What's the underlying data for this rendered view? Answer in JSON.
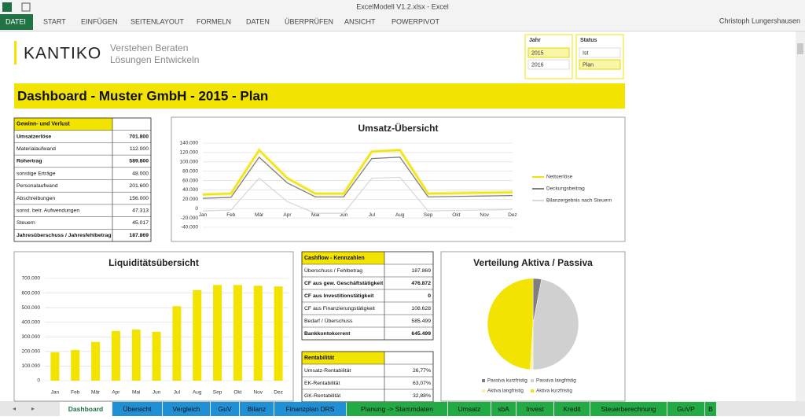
{
  "window": {
    "title": "ExcelModell V1.2.xlsx - Excel",
    "user": "Christoph Lungershausen"
  },
  "ribbon_tabs": [
    "DATEI",
    "START",
    "EINFÜGEN",
    "SEITENLAYOUT",
    "FORMELN",
    "DATEN",
    "ÜBERPRÜFEN",
    "ANSICHT",
    "POWERPIVOT"
  ],
  "logo": {
    "name": "KANTIKO",
    "tagline": [
      "Verstehen Beraten",
      "Lösungen Entwickeln"
    ]
  },
  "slicers": [
    {
      "title": "Jahr",
      "items": [
        "2015",
        "2016"
      ]
    },
    {
      "title": "Status",
      "items": [
        "Ist",
        "Plan"
      ]
    }
  ],
  "dashboard_title": "Dashboard - Muster GmbH - 2015 - Plan",
  "guv": {
    "header": "Gewinn- und Verlust",
    "rows": [
      [
        "Umsatzerlöse",
        "701.800"
      ],
      [
        "Materialaufwand",
        "112.000"
      ],
      [
        "Rohertrag",
        "589.800"
      ],
      [
        "sonstige Erträge",
        "48.000"
      ],
      [
        "Personalaufwand",
        "201.600"
      ],
      [
        "Abschreibungen",
        "156.000"
      ],
      [
        "sonst. betr. Aufwendungen",
        "47.313"
      ],
      [
        "Steuern",
        "45.017"
      ],
      [
        "Jahresüberschuss / Jahresfehlbetrag",
        "187.869"
      ]
    ]
  },
  "cashflow": {
    "header": "Cashflow - Kennzahlen",
    "rows": [
      [
        "Überschuss / Fehlbetrag",
        "187.869"
      ],
      [
        "CF aus gew. Geschäftstätigkeit",
        "476.872"
      ],
      [
        "CF aus Investitionstätigkeit",
        "0"
      ],
      [
        "CF aus Finanzierungstätigkeit",
        "108.628"
      ],
      [
        "Bedarf / Überschuss",
        "585.499"
      ],
      [
        "Bankkontokorrent",
        "645.499"
      ]
    ]
  },
  "rentabilitaet": {
    "header": "Rentabilität",
    "rows": [
      [
        "Umsatz-Rentabilität",
        "26,77%"
      ],
      [
        "EK-Rentabilität",
        "63,07%"
      ],
      [
        "GK-Rentabilität",
        "32,88%"
      ]
    ]
  },
  "chart_data": [
    {
      "type": "line",
      "title": "Umsatz-Übersicht",
      "categories": [
        "Jan",
        "Feb",
        "Mär",
        "Apr",
        "Mai",
        "Jun",
        "Jul",
        "Aug",
        "Sep",
        "Okt",
        "Nov",
        "Dez"
      ],
      "series": [
        {
          "name": "Nettoerlöse",
          "color": "#f2e300",
          "values": [
            30000,
            32000,
            125000,
            65000,
            32000,
            32000,
            122000,
            125000,
            32000,
            33000,
            34000,
            35000
          ]
        },
        {
          "name": "Deckungsbeitrag",
          "color": "#7f7f7f",
          "values": [
            22000,
            24000,
            110000,
            55000,
            25000,
            25000,
            107000,
            110000,
            25000,
            26000,
            27000,
            28000
          ]
        },
        {
          "name": "Bilanzergebnis nach Steuern",
          "color": "#d9d9d9",
          "values": [
            -5000,
            -3000,
            65000,
            15000,
            -10000,
            -10000,
            65000,
            67000,
            -5000,
            -4000,
            -3000,
            -2000
          ]
        }
      ],
      "ylim": [
        -40000,
        140000
      ],
      "yticks": [
        {
          "value": -40000,
          "label": "-40.000"
        },
        {
          "value": -20000,
          "label": "-20.000"
        },
        0,
        {
          "value": 20000,
          "label": "20.000"
        },
        {
          "value": 40000,
          "label": "40.000"
        },
        {
          "value": 60000,
          "label": "60.000"
        },
        {
          "value": 80000,
          "label": "80.000"
        },
        {
          "value": 100000,
          "label": "100.000"
        },
        {
          "value": 120000,
          "label": "120.000"
        },
        {
          "value": 140000,
          "label": "140.000"
        }
      ],
      "grid": true
    },
    {
      "type": "bar",
      "title": "Liquiditätsübersicht",
      "categories": [
        "Jan",
        "Feb",
        "Mär",
        "Apr",
        "Mai",
        "Jun",
        "Jul",
        "Aug",
        "Sep",
        "Okt",
        "Nov",
        "Dez"
      ],
      "color": "#f2e300",
      "values": [
        195000,
        210000,
        265000,
        340000,
        350000,
        335000,
        510000,
        620000,
        655000,
        655000,
        650000,
        645000
      ],
      "ylim": [
        0,
        700000
      ],
      "yticks": [
        0,
        {
          "value": 100000,
          "label": "100.000"
        },
        {
          "value": 200000,
          "label": "200.000"
        },
        {
          "value": 300000,
          "label": "300.000"
        },
        {
          "value": 400000,
          "label": "400.000"
        },
        {
          "value": 500000,
          "label": "500.000"
        },
        {
          "value": 600000,
          "label": "600.000"
        },
        {
          "value": 700000,
          "label": "700.000"
        }
      ],
      "grid": true
    },
    {
      "type": "pie",
      "title": "Verteilung Aktiva / Passiva",
      "categories": [
        "Passiva kurzfristig",
        "Passiva langfristig",
        "Aktiva langfristig",
        "Aktiva kurzfristig"
      ],
      "values": [
        3,
        47,
        1,
        49
      ],
      "colors": [
        "#7f7f7f",
        "#d0d0d0",
        "#f7f3a0",
        "#f2e300"
      ]
    }
  ],
  "sheet_tabs": [
    "Dashboard",
    "Übersicht",
    "Vergleich",
    "GuV",
    "Bilanz",
    "Finanzplan DRS",
    "Planung -> Stammdaten",
    "Umsatz",
    "sbA",
    "Invest",
    "Kredit",
    "Steuerberechnung",
    "GuVP",
    "B"
  ]
}
